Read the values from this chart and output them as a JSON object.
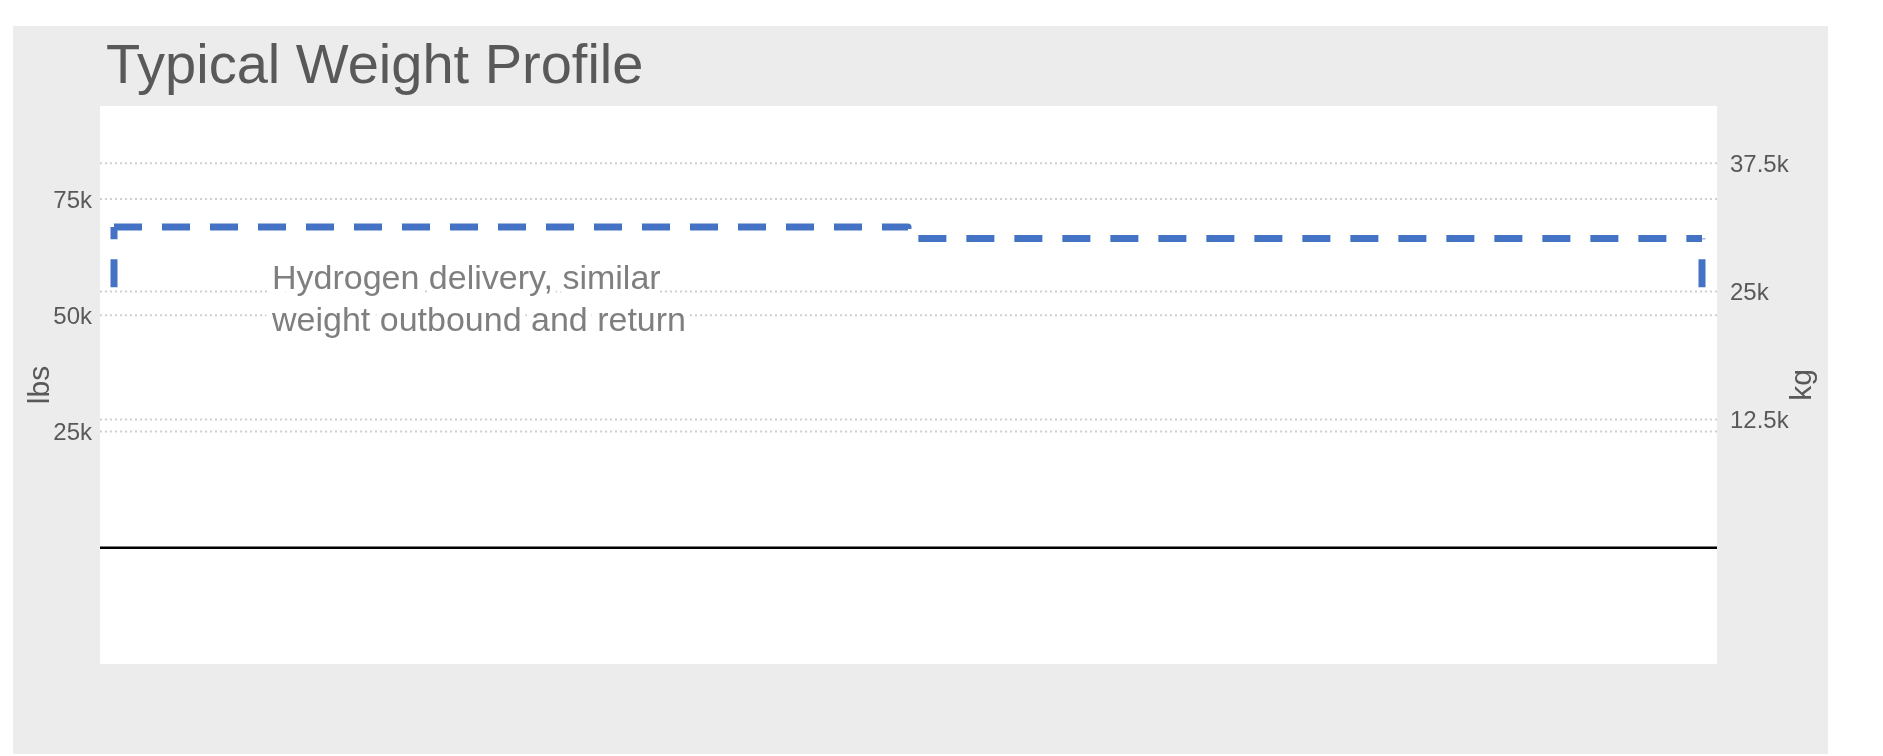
{
  "chart_data": {
    "type": "step",
    "title": "Typical Weight Profile",
    "ylabel": "lbs",
    "y2label": "kg",
    "categories": [
      null,
      null,
      null
    ],
    "series": [
      {
        "color": "#4472c4",
        "values": [
          69000,
          66500,
          66500
        ],
        "errors": [
          [
            56000,
            69000
          ],
          null,
          [
            56000,
            66500
          ]
        ]
      }
    ],
    "line_style": "dashed",
    "ylim": [
      -25000,
      95000
    ],
    "yticks": [
      {
        "value": 25000,
        "label": "25k"
      },
      {
        "value": 50000,
        "label": "50k"
      },
      {
        "value": 75000,
        "label": "75k"
      }
    ],
    "y2lim": [
      -11340,
      43090
    ],
    "y2ticks": [
      {
        "value": 12500,
        "label": "12.5k"
      },
      {
        "value": 25000,
        "label": "25k"
      },
      {
        "value": 37500,
        "label": "37.5k"
      }
    ],
    "grid": "y",
    "annotations": [
      "Hydrogen delivery, similar weight outbound and return"
    ]
  }
}
